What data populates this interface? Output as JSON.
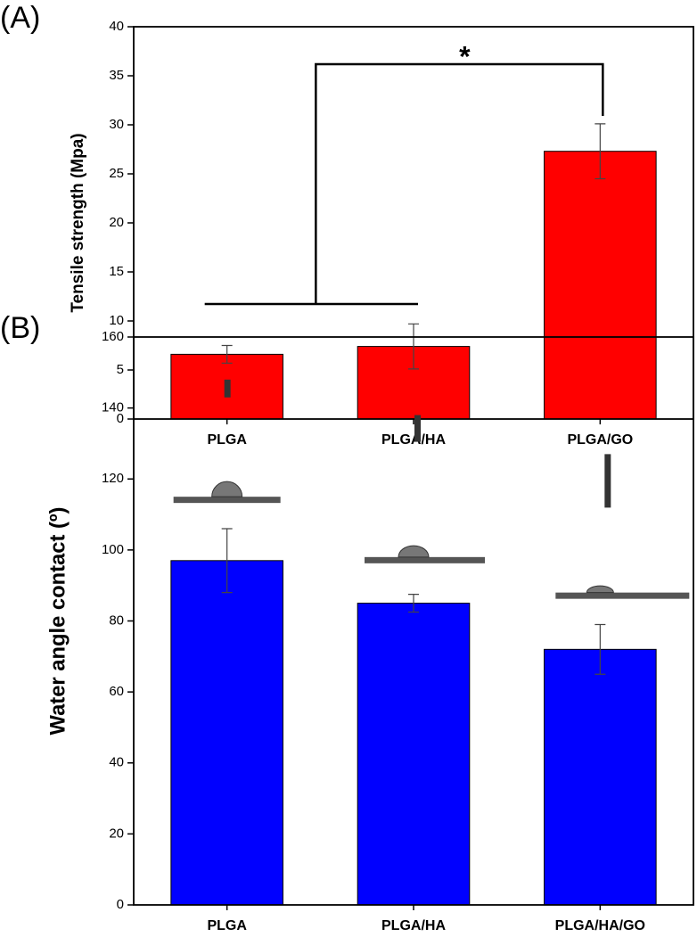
{
  "chart_data": [
    {
      "type": "bar",
      "panel_label": "(A)",
      "y_label": "Tensile strength (Mpa)",
      "categories": [
        "PLGA",
        "PLGA/HA",
        "PLGA/GO"
      ],
      "values": [
        6.6,
        7.4,
        27.3
      ],
      "errors": [
        0.9,
        2.3,
        2.8
      ],
      "color": "#ff0000",
      "ylim": [
        0,
        40
      ],
      "yticks": [
        0,
        5,
        10,
        15,
        20,
        25,
        30,
        35,
        40
      ],
      "annotation": "*"
    },
    {
      "type": "bar",
      "panel_label": "(B)",
      "y_label": "Water angle contact (º)",
      "categories": [
        "PLGA",
        "PLGA/HA",
        "PLGA/HA/GO"
      ],
      "values": [
        97,
        85,
        72
      ],
      "errors": [
        9,
        2.5,
        7
      ],
      "color": "#0000ff",
      "ylim": [
        0,
        160
      ],
      "yticks": [
        0,
        20,
        40,
        60,
        80,
        100,
        120,
        140,
        160
      ]
    }
  ]
}
